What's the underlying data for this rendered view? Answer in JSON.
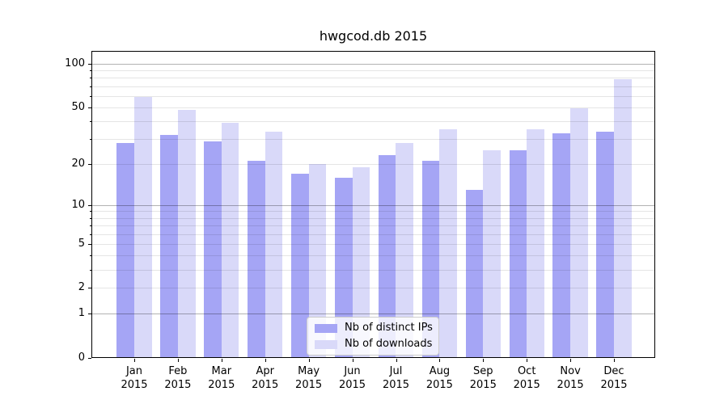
{
  "chart_data": {
    "type": "bar",
    "title": "hwgcod.db 2015",
    "categories": [
      "Jan",
      "Feb",
      "Mar",
      "Apr",
      "May",
      "Jun",
      "Jul",
      "Aug",
      "Sep",
      "Oct",
      "Nov",
      "Dec"
    ],
    "category_year": "2015",
    "series": [
      {
        "name": "Nb of distinct IPs",
        "color": "#a5a5f5",
        "values": [
          28,
          32,
          29,
          21,
          17,
          16,
          23,
          21,
          13,
          25,
          33,
          34
        ]
      },
      {
        "name": "Nb of downloads",
        "color": "#d9d9f9",
        "values": [
          59,
          48,
          39,
          34,
          20,
          19,
          28,
          35,
          25,
          35,
          49,
          78
        ]
      }
    ],
    "yscale": "log1p",
    "ylim": [
      0,
      123
    ],
    "ytick_values": [
      100,
      50,
      20,
      10,
      5,
      2,
      1,
      0
    ],
    "major_gridline_values": [
      1,
      10,
      100
    ],
    "minor_gridline_values": [
      2,
      3,
      4,
      5,
      6,
      7,
      8,
      9,
      20,
      30,
      40,
      50,
      60,
      70,
      80,
      90
    ],
    "grid": true,
    "legend_position": "lower-center-inside",
    "colors": {
      "major_grid": "rgba(0,0,0,0.30)",
      "minor_grid": "rgba(0,0,0,0.10)",
      "spine": "#000000",
      "text": "#000000",
      "legend_border": "#cccccc",
      "legend_background": "rgba(255,255,255,0.8)"
    }
  }
}
